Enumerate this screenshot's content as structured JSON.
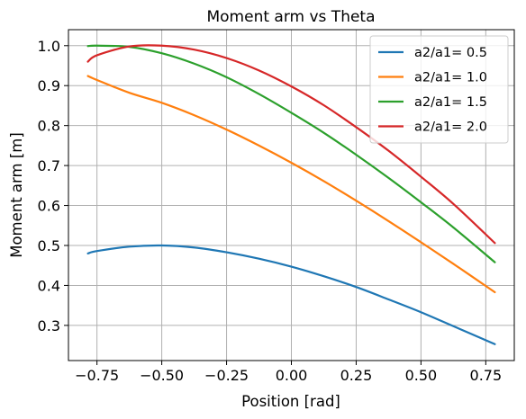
{
  "chart_data": {
    "type": "line",
    "title": "Moment arm vs Theta",
    "xlabel": "Position [rad]",
    "ylabel": "Moment arm [m]",
    "xlim": [
      -0.86,
      0.86
    ],
    "ylim": [
      0.212,
      1.04
    ],
    "xticks": [
      -0.75,
      -0.5,
      -0.25,
      0.0,
      0.25,
      0.5,
      0.75
    ],
    "xtick_labels": [
      "−0.75",
      "−0.50",
      "−0.25",
      "0.00",
      "0.25",
      "0.50",
      "0.75"
    ],
    "yticks": [
      0.3,
      0.4,
      0.5,
      0.6,
      0.7,
      0.8,
      0.9,
      1.0
    ],
    "ytick_labels": [
      "0.3",
      "0.4",
      "0.5",
      "0.6",
      "0.7",
      "0.8",
      "0.9",
      "1.0"
    ],
    "grid": true,
    "legend_position": "top-right",
    "x": [
      -0.785,
      -0.75,
      -0.625,
      -0.5,
      -0.375,
      -0.25,
      -0.125,
      0.0,
      0.125,
      0.25,
      0.375,
      0.5,
      0.625,
      0.785
    ],
    "series": [
      {
        "name": "a2/a1= 0.5",
        "color": "#1f77b4",
        "values": [
          0.48,
          0.486,
          0.497,
          0.5,
          0.495,
          0.483,
          0.467,
          0.447,
          0.423,
          0.396,
          0.365,
          0.333,
          0.298,
          0.253
        ]
      },
      {
        "name": "a2/a1= 1.0",
        "color": "#ff7f0e",
        "values": [
          0.924,
          0.914,
          0.882,
          0.857,
          0.826,
          0.79,
          0.75,
          0.707,
          0.661,
          0.612,
          0.561,
          0.508,
          0.454,
          0.383
        ]
      },
      {
        "name": "a2/a1= 1.5",
        "color": "#2ca02c",
        "values": [
          0.999,
          1.0,
          0.997,
          0.981,
          0.955,
          0.921,
          0.879,
          0.832,
          0.782,
          0.727,
          0.669,
          0.608,
          0.545,
          0.458
        ]
      },
      {
        "name": "a2/a1= 2.0",
        "color": "#d62728",
        "values": [
          0.96,
          0.976,
          0.998,
          1.0,
          0.99,
          0.969,
          0.938,
          0.898,
          0.851,
          0.796,
          0.737,
          0.672,
          0.604,
          0.506
        ]
      }
    ]
  }
}
